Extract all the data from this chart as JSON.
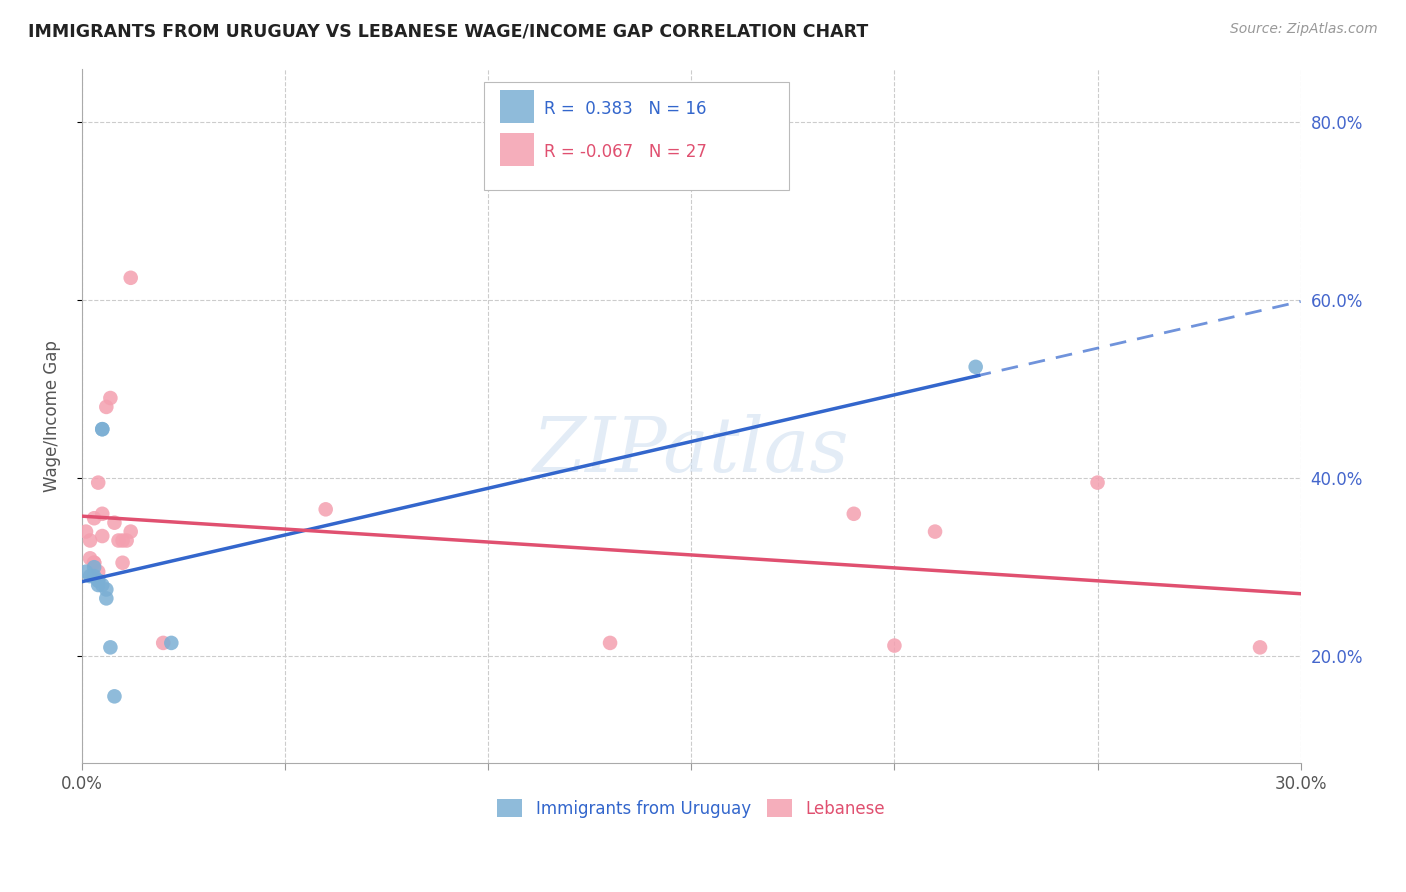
{
  "title": "IMMIGRANTS FROM URUGUAY VS LEBANESE WAGE/INCOME GAP CORRELATION CHART",
  "source": "Source: ZipAtlas.com",
  "ylabel": "Wage/Income Gap",
  "x_min": 0.0,
  "x_max": 0.3,
  "y_min": 0.08,
  "y_max": 0.86,
  "yticks_right": [
    0.2,
    0.4,
    0.6,
    0.8
  ],
  "ytick_labels_right": [
    "20.0%",
    "40.0%",
    "60.0%",
    "80.0%"
  ],
  "xticks": [
    0.0,
    0.05,
    0.1,
    0.15,
    0.2,
    0.25,
    0.3
  ],
  "grid_color": "#cccccc",
  "background_color": "#ffffff",
  "uruguay_color": "#7bafd4",
  "lebanese_color": "#f4a0b0",
  "trendline_uruguay_color": "#3366cc",
  "trendline_lebanese_color": "#e05070",
  "legend_R_uruguay": "0.383",
  "legend_N_uruguay": "16",
  "legend_R_lebanese": "-0.067",
  "legend_N_lebanese": "27",
  "uruguay_x": [
    0.001,
    0.002,
    0.003,
    0.003,
    0.004,
    0.004,
    0.004,
    0.005,
    0.005,
    0.005,
    0.006,
    0.006,
    0.007,
    0.008,
    0.022,
    0.22
  ],
  "uruguay_y": [
    0.295,
    0.29,
    0.3,
    0.29,
    0.285,
    0.285,
    0.28,
    0.455,
    0.455,
    0.28,
    0.275,
    0.265,
    0.21,
    0.155,
    0.215,
    0.525
  ],
  "lebanese_x": [
    0.001,
    0.002,
    0.002,
    0.003,
    0.003,
    0.003,
    0.004,
    0.004,
    0.005,
    0.005,
    0.006,
    0.007,
    0.008,
    0.009,
    0.01,
    0.01,
    0.011,
    0.012,
    0.012,
    0.02,
    0.06,
    0.13,
    0.19,
    0.2,
    0.21,
    0.25,
    0.29
  ],
  "lebanese_y": [
    0.34,
    0.33,
    0.31,
    0.305,
    0.355,
    0.305,
    0.295,
    0.395,
    0.36,
    0.335,
    0.48,
    0.49,
    0.35,
    0.33,
    0.33,
    0.305,
    0.33,
    0.625,
    0.34,
    0.215,
    0.365,
    0.215,
    0.36,
    0.212,
    0.34,
    0.395,
    0.21
  ],
  "watermark": "ZIPatlas",
  "dot_size": 110,
  "legend_label_uruguay": "Immigrants from Uruguay",
  "legend_label_lebanese": "Lebanese"
}
